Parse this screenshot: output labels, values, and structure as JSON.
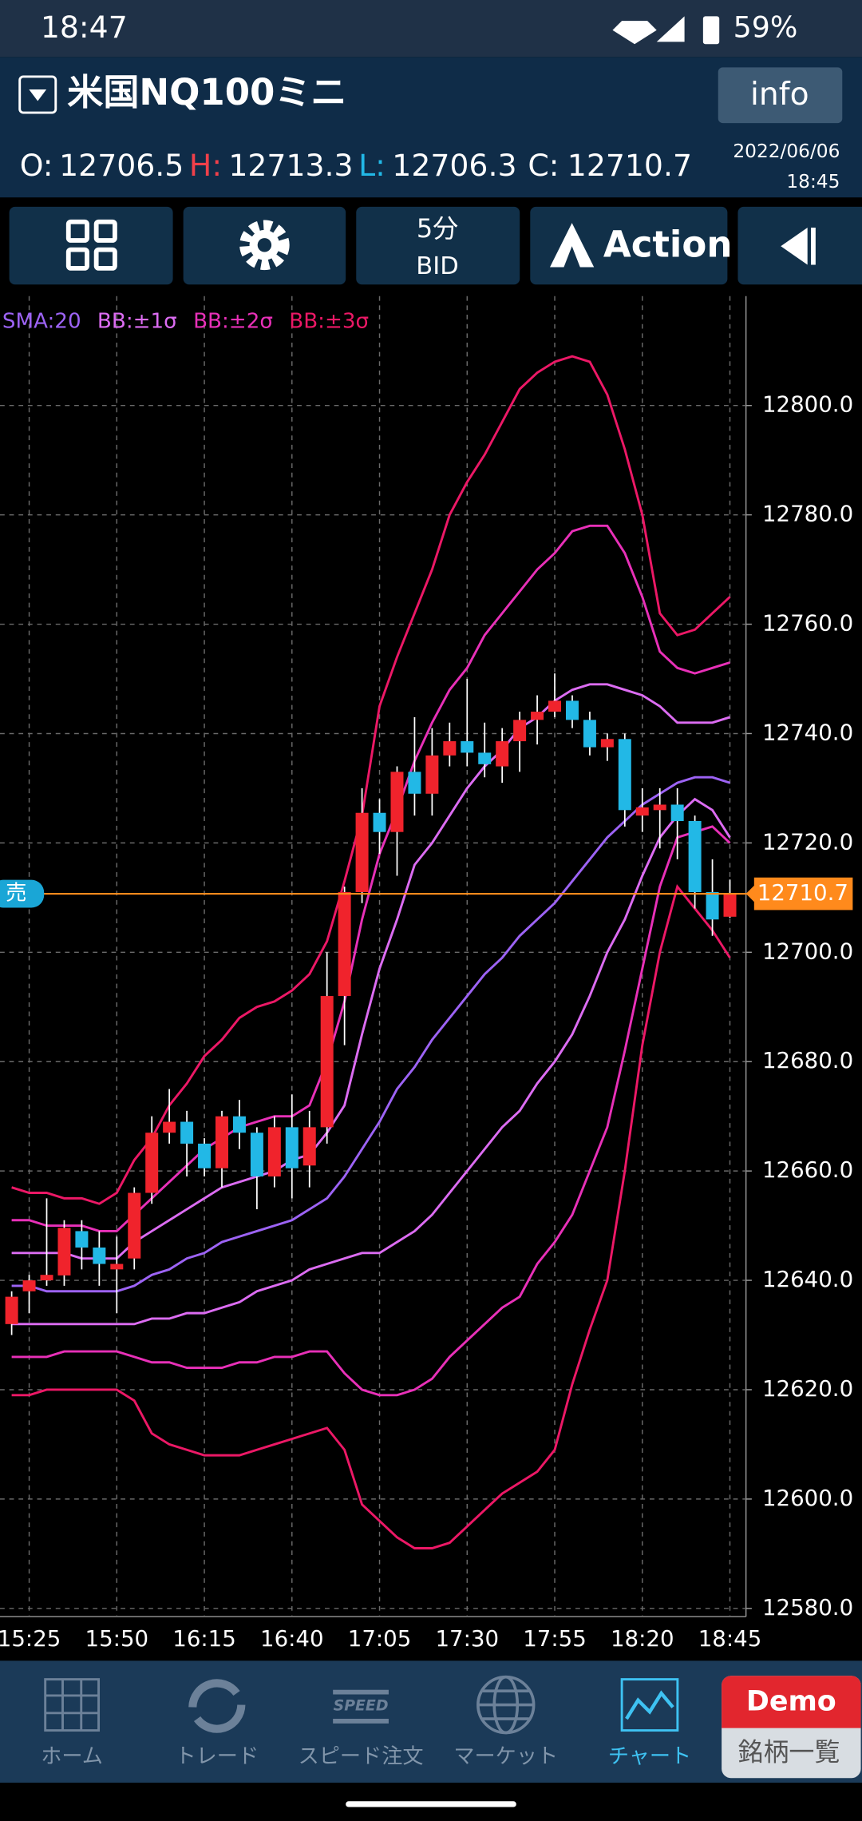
{
  "status_bar": {
    "time": "18:47",
    "battery": "59%"
  },
  "header": {
    "symbol": "米国NQ100ミニ",
    "info_button": "info",
    "ohlc_labels": [
      "O:",
      "H:",
      "L:",
      "C:"
    ],
    "date": "2022/06/06",
    "time": "18:45"
  },
  "toolbar": {
    "timeframe": "5分",
    "price_type": "BID",
    "action": "Action"
  },
  "chart_data": {
    "type": "candlestick",
    "categories": [
      null,
      "15:25",
      null,
      null,
      null,
      null,
      "15:50",
      null,
      null,
      null,
      null,
      "16:15",
      null,
      null,
      null,
      null,
      "16:40",
      null,
      null,
      null,
      null,
      "17:05",
      null,
      null,
      null,
      null,
      "17:30",
      null,
      null,
      null,
      null,
      "17:55",
      null,
      null,
      null,
      null,
      "18:20",
      null,
      null,
      null,
      null,
      "18:45"
    ],
    "open": [
      12632,
      12638,
      12640,
      12640.9,
      12649,
      12646,
      12642,
      12644,
      12656,
      12667,
      12669,
      12665,
      12660.5,
      12670,
      12667,
      12659,
      12668,
      12661,
      12668,
      12692,
      12711,
      12725.5,
      12722,
      12733,
      12729,
      12736,
      12738.6,
      12736.5,
      12734,
      12738.6,
      12742.5,
      12744,
      12746,
      12742.5,
      12737.5,
      12739,
      12725,
      12726,
      12727,
      12724,
      12711,
      12706.5
    ],
    "high": [
      12638,
      12641,
      12655,
      12651,
      12651,
      12649,
      12648,
      12657,
      12670,
      12675,
      12671,
      12666,
      12671,
      12673,
      12668,
      12670,
      12674,
      12671,
      12700,
      12712,
      12730,
      12728,
      12734,
      12743,
      12741,
      12742,
      12750,
      12742,
      12741,
      12744,
      12747,
      12751,
      12747,
      12744,
      12740,
      12740,
      12730,
      12730,
      12730,
      12725,
      12717,
      12713.3
    ],
    "low": [
      12630,
      12634,
      12639,
      12639,
      12642,
      12639,
      12634,
      12642,
      12654,
      12665,
      12659,
      12659,
      12657,
      12664,
      12653,
      12657,
      12655,
      12657,
      12665,
      12683,
      12709,
      12718,
      12714,
      12725,
      12725,
      12734,
      12734,
      12732,
      12731,
      12733,
      12738,
      12743,
      12741,
      12736,
      12735,
      12723,
      12722,
      12719,
      12717,
      12708,
      12703,
      12706.3
    ],
    "close": [
      12637,
      12640,
      12641,
      12649.6,
      12646,
      12643,
      12643,
      12656,
      12667,
      12669,
      12665,
      12660.5,
      12670,
      12667,
      12659,
      12668,
      12660.5,
      12668,
      12692,
      12711,
      12725.5,
      12722,
      12733,
      12729,
      12736,
      12738.6,
      12736.5,
      12734.4,
      12738.6,
      12742.5,
      12744,
      12746,
      12742.5,
      12737.5,
      12739,
      12726,
      12726.5,
      12727,
      12724,
      12711,
      12706,
      12710.7
    ],
    "up_color": "#f0232c",
    "down_color": "#22b8e6",
    "overlays": [
      {
        "name": "SMA:20",
        "color": "#9d63f5",
        "lines": [
          [
            12639,
            12639,
            12638,
            12638,
            12638,
            12638,
            12638,
            12639,
            12641,
            12642,
            12644,
            12645,
            12647,
            12648,
            12649,
            12650,
            12651,
            12653,
            12655,
            12659,
            12664,
            12669,
            12675,
            12679,
            12684,
            12688,
            12692,
            12696,
            12699,
            12703,
            12706,
            12709,
            12713,
            12717,
            12721,
            12724,
            12727,
            12729,
            12731,
            12732,
            12732,
            12731
          ]
        ]
      },
      {
        "name": "BB:±1σ",
        "color": "#dc6cf2",
        "lines": [
          [
            12645,
            12645,
            12645,
            12645,
            12644,
            12644,
            12644,
            12647,
            12649,
            12651,
            12653,
            12655,
            12657,
            12658,
            12659,
            12660,
            12662,
            12663,
            12667,
            12672,
            12685,
            12697,
            12706,
            12716,
            12720,
            12725,
            12730,
            12734,
            12737,
            12741,
            12743,
            12746,
            12748,
            12749,
            12749,
            12748,
            12747,
            12745,
            12742,
            12742,
            12742,
            12743
          ],
          [
            12632,
            12632,
            12632,
            12632,
            12632,
            12632,
            12632,
            12632,
            12633,
            12633,
            12634,
            12634,
            12635,
            12636,
            12638,
            12639,
            12640,
            12642,
            12643,
            12644,
            12645,
            12645,
            12647,
            12649,
            12652,
            12656,
            12660,
            12664,
            12668,
            12671,
            12676,
            12680,
            12685,
            12692,
            12700,
            12706,
            12714,
            12721,
            12725,
            12728,
            12726,
            12721
          ]
        ]
      },
      {
        "name": "BB:±2σ",
        "color": "#e830b8",
        "lines": [
          [
            12651,
            12651,
            12650,
            12650,
            12650,
            12649,
            12649,
            12652,
            12655,
            12658,
            12661,
            12664,
            12666,
            12668,
            12669,
            12670,
            12670,
            12672,
            12680,
            12691,
            12706,
            12718,
            12726,
            12735,
            12742,
            12748,
            12752,
            12758,
            12762,
            12766,
            12770,
            12773,
            12777,
            12778,
            12778,
            12773,
            12765,
            12755,
            12752,
            12751,
            12752,
            12753
          ],
          [
            12626,
            12626,
            12626,
            12627,
            12627,
            12627,
            12627,
            12626,
            12625,
            12625,
            12624,
            12624,
            12624,
            12625,
            12625,
            12626,
            12626,
            12627,
            12627,
            12623,
            12620,
            12619,
            12619,
            12620,
            12622,
            12626,
            12629,
            12632,
            12635,
            12637,
            12643,
            12647,
            12652,
            12660,
            12668,
            12682,
            12697,
            12712,
            12721,
            12722,
            12723,
            12720
          ]
        ]
      },
      {
        "name": "BB:±3σ",
        "color": "#ec1866",
        "lines": [
          [
            12657,
            12656,
            12656,
            12655,
            12655,
            12654,
            12656,
            12662,
            12666,
            12672,
            12676,
            12681,
            12684,
            12688,
            12690,
            12691,
            12693,
            12696,
            12702,
            12713,
            12725,
            12745,
            12754,
            12762,
            12770,
            12780,
            12786,
            12791,
            12797,
            12803,
            12806,
            12808,
            12809,
            12808,
            12802,
            12792,
            12780,
            12762,
            12758,
            12759,
            12762,
            12765
          ],
          [
            12619,
            12619,
            12620,
            12620,
            12620,
            12620,
            12620,
            12618,
            12612,
            12610,
            12609,
            12608,
            12608,
            12608,
            12609,
            12610,
            12611,
            12612,
            12613,
            12609,
            12599,
            12596,
            12593,
            12591,
            12591,
            12592,
            12595,
            12598,
            12601,
            12603,
            12605,
            12609,
            12621,
            12631,
            12640,
            12660,
            12683,
            12700,
            12712,
            12708,
            12704,
            12699
          ]
        ]
      }
    ],
    "ylim": [
      12578.5,
      12820
    ],
    "yticks": [
      {
        "value": 12580,
        "label": "12580.0"
      },
      {
        "value": 12600,
        "label": "12600.0"
      },
      {
        "value": 12620,
        "label": "12620.0"
      },
      {
        "value": 12640,
        "label": "12640.0"
      },
      {
        "value": 12660,
        "label": "12660.0"
      },
      {
        "value": 12680,
        "label": "12680.0"
      },
      {
        "value": 12700,
        "label": "12700.0"
      },
      {
        "value": 12720,
        "label": "12720.0"
      },
      {
        "value": 12740,
        "label": "12740.0"
      },
      {
        "value": 12760,
        "label": "12760.0"
      },
      {
        "value": 12780,
        "label": "12780.0"
      },
      {
        "value": 12800,
        "label": "12800.0"
      }
    ],
    "grid": true,
    "price_line": {
      "tag": "売",
      "color": "#ff8a1c",
      "tag_color": "#1aa6d6"
    }
  },
  "bottom_nav": {
    "items": [
      "ホーム",
      "トレード",
      "スピード注文",
      "マーケット",
      "チャート"
    ],
    "active": 4,
    "speed_icon": "SPEED",
    "demo_badge": "Demo",
    "symbol_list": "銘柄一覧"
  }
}
